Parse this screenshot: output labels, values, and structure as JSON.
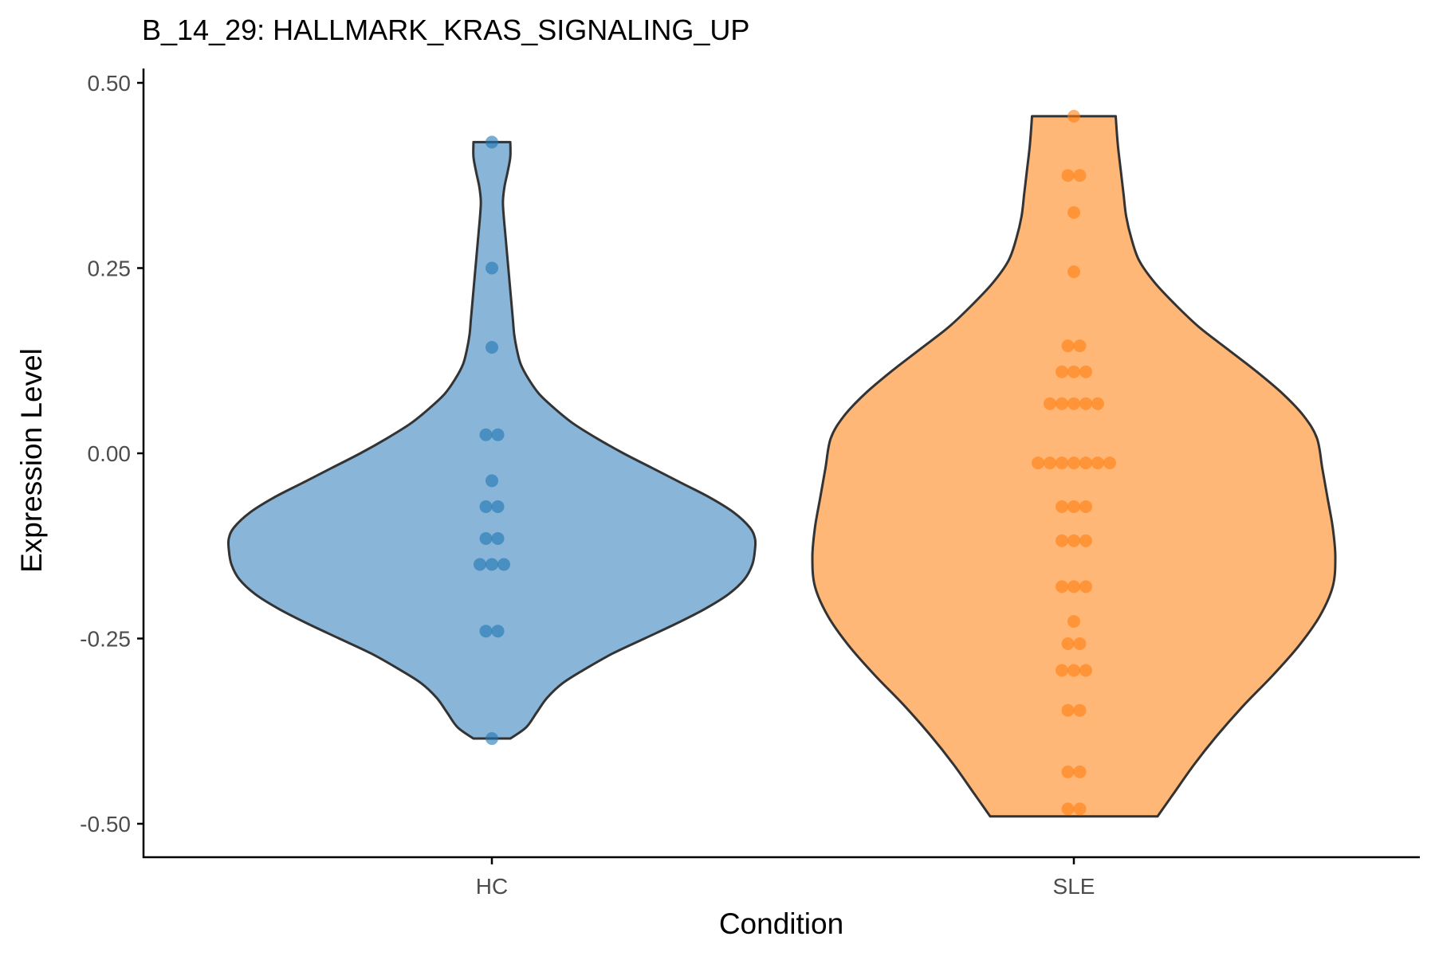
{
  "chart_data": {
    "type": "violin",
    "title": "B_14_29: HALLMARK_KRAS_SIGNALING_UP",
    "xlabel": "Condition",
    "ylabel": "Expression Level",
    "ylim": [
      -0.535,
      0.52
    ],
    "yticks": [
      -0.5,
      -0.25,
      0.0,
      0.25,
      0.5
    ],
    "ytick_labels": [
      "-0.50",
      "-0.25",
      "0.00",
      "0.25",
      "0.50"
    ],
    "categories": [
      "HC",
      "SLE"
    ],
    "grid": false,
    "legend": "none",
    "series": [
      {
        "category": "HC",
        "fill": "#2b7bba",
        "point_color": "#1f77b4",
        "min": -0.385,
        "max": 0.42,
        "points": [
          0.42,
          0.25,
          0.143,
          0.025,
          0.025,
          -0.037,
          -0.072,
          -0.072,
          -0.115,
          -0.115,
          -0.15,
          -0.15,
          -0.15,
          -0.24,
          -0.24,
          -0.385
        ],
        "density": [
          [
            -0.385,
            0.07
          ],
          [
            -0.37,
            0.13
          ],
          [
            -0.35,
            0.17
          ],
          [
            -0.33,
            0.21
          ],
          [
            -0.31,
            0.27
          ],
          [
            -0.29,
            0.36
          ],
          [
            -0.27,
            0.46
          ],
          [
            -0.25,
            0.58
          ],
          [
            -0.23,
            0.7
          ],
          [
            -0.21,
            0.81
          ],
          [
            -0.19,
            0.9
          ],
          [
            -0.17,
            0.96
          ],
          [
            -0.15,
            0.99
          ],
          [
            -0.13,
            1.0
          ],
          [
            -0.115,
            1.0
          ],
          [
            -0.1,
            0.98
          ],
          [
            -0.08,
            0.92
          ],
          [
            -0.06,
            0.83
          ],
          [
            -0.04,
            0.72
          ],
          [
            -0.02,
            0.61
          ],
          [
            0.0,
            0.5
          ],
          [
            0.02,
            0.4
          ],
          [
            0.04,
            0.31
          ],
          [
            0.06,
            0.24
          ],
          [
            0.08,
            0.18
          ],
          [
            0.1,
            0.14
          ],
          [
            0.12,
            0.11
          ],
          [
            0.14,
            0.095
          ],
          [
            0.16,
            0.085
          ],
          [
            0.18,
            0.08
          ],
          [
            0.2,
            0.075
          ],
          [
            0.22,
            0.07
          ],
          [
            0.24,
            0.065
          ],
          [
            0.26,
            0.06
          ],
          [
            0.28,
            0.055
          ],
          [
            0.3,
            0.05
          ],
          [
            0.32,
            0.045
          ],
          [
            0.34,
            0.042
          ],
          [
            0.36,
            0.048
          ],
          [
            0.38,
            0.06
          ],
          [
            0.4,
            0.07
          ],
          [
            0.42,
            0.07
          ]
        ]
      },
      {
        "category": "SLE",
        "fill": "#ff7f0e",
        "point_color": "#ff7f0e",
        "min": -0.49,
        "max": 0.455,
        "points": [
          0.455,
          0.375,
          0.375,
          0.325,
          0.245,
          0.145,
          0.145,
          0.11,
          0.11,
          0.11,
          0.067,
          0.067,
          0.067,
          0.067,
          0.067,
          -0.013,
          -0.013,
          -0.013,
          -0.013,
          -0.013,
          -0.013,
          -0.013,
          -0.072,
          -0.072,
          -0.072,
          -0.118,
          -0.118,
          -0.118,
          -0.18,
          -0.18,
          -0.18,
          -0.227,
          -0.257,
          -0.257,
          -0.293,
          -0.293,
          -0.293,
          -0.347,
          -0.347,
          -0.43,
          -0.43,
          -0.48,
          -0.48
        ],
        "density": [
          [
            -0.49,
            0.32
          ],
          [
            -0.46,
            0.38
          ],
          [
            -0.42,
            0.46
          ],
          [
            -0.38,
            0.55
          ],
          [
            -0.34,
            0.65
          ],
          [
            -0.3,
            0.76
          ],
          [
            -0.26,
            0.86
          ],
          [
            -0.22,
            0.94
          ],
          [
            -0.18,
            0.99
          ],
          [
            -0.14,
            1.0
          ],
          [
            -0.1,
            0.99
          ],
          [
            -0.06,
            0.97
          ],
          [
            -0.02,
            0.95
          ],
          [
            0.02,
            0.93
          ],
          [
            0.05,
            0.88
          ],
          [
            0.08,
            0.8
          ],
          [
            0.11,
            0.7
          ],
          [
            0.14,
            0.59
          ],
          [
            0.17,
            0.48
          ],
          [
            0.2,
            0.39
          ],
          [
            0.23,
            0.31
          ],
          [
            0.26,
            0.25
          ],
          [
            0.29,
            0.22
          ],
          [
            0.32,
            0.2
          ],
          [
            0.35,
            0.19
          ],
          [
            0.38,
            0.18
          ],
          [
            0.41,
            0.17
          ],
          [
            0.43,
            0.165
          ],
          [
            0.455,
            0.16
          ]
        ]
      }
    ]
  }
}
